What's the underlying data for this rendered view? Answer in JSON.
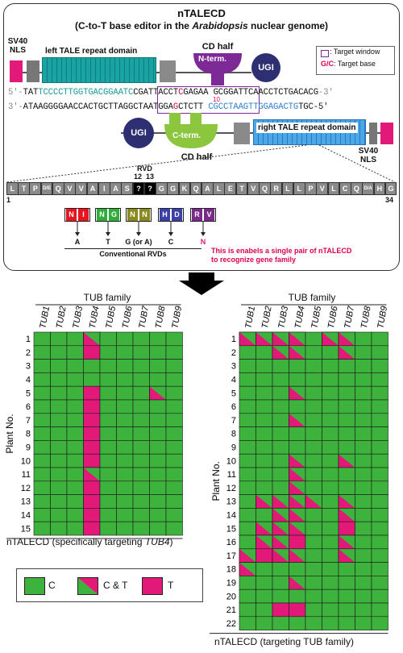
{
  "header": {
    "title": "nTALECD",
    "subtitle_pre": "(C-to-T base editor in the ",
    "subtitle_italic": "Arabidopsis",
    "subtitle_post": " nuclear genome)"
  },
  "construct": {
    "sv40_nls": [
      "SV40",
      "NLS"
    ],
    "left_tale": "left TALE repeat domain",
    "right_tale": "right TALE repeat domain",
    "cd_half": "CD half",
    "n_term": "N-term.",
    "c_term": "C-term.",
    "ugi": "UGI",
    "legend_window": ": Target window",
    "legend_base_prefix": "G/C",
    "legend_base_suffix": ": Target base",
    "target_pos": "10",
    "seq_top": {
      "prime5": "5'-",
      "a": "TAT",
      "b": "TCCCCTTGGTGACGGAATC",
      "c": "CGATTACCT",
      "d": "C",
      "e": "GAGAA",
      "f": "GCGGATTCAACCTCTGACACG",
      "g": "-3'"
    },
    "seq_bot": {
      "prime3": "3'-",
      "a": "ATAAGGGGAACCACTGCTTAG",
      "c": "GCTAATGGA",
      "d": "G",
      "e": "CTCTT",
      "f": "CGCCTAAGTTGGAGACTG",
      "g": "TGC-5'"
    }
  },
  "repeat": {
    "rvd": "RVD",
    "pos12": "12",
    "pos13": "13",
    "residues": [
      "L",
      "T",
      "P",
      "D/E",
      "Q",
      "V",
      "V",
      "A",
      "I",
      "A",
      "S",
      "?",
      "?",
      "G",
      "G",
      "K",
      "Q",
      "A",
      "L",
      "E",
      "T",
      "V",
      "Q",
      "R",
      "L",
      "L",
      "P",
      "V",
      "L",
      "C",
      "Q",
      "D/A",
      "H",
      "G"
    ],
    "idx_start": "1",
    "idx_end": "34",
    "rvds": [
      {
        "label": [
          "N",
          "I"
        ],
        "base": "A",
        "color": "#e8141e"
      },
      {
        "label": [
          "N",
          "G"
        ],
        "base": "T",
        "color": "#2fae3a"
      },
      {
        "label": [
          "N",
          "N"
        ],
        "base": "G (or A)",
        "color": "#8a8a1e"
      },
      {
        "label": [
          "H",
          "D"
        ],
        "base": "C",
        "color": "#3a40a8"
      },
      {
        "label": [
          "R",
          "V"
        ],
        "base": "N",
        "color": "#7a2a8a"
      }
    ],
    "conventional": "Conventional RVDs",
    "note_line1": "This is enabels a single pair of nTALECD",
    "note_line2": "to recognize gene family"
  },
  "grid_left": {
    "title": "TUB family",
    "genes": [
      "TUB1",
      "TUB2",
      "TUB3",
      "TUB4",
      "TUB5",
      "TUB6",
      "TUB7",
      "TUB8",
      "TUB9"
    ],
    "plants": [
      "1",
      "2",
      "3",
      "4",
      "5",
      "6",
      "7",
      "8",
      "9",
      "10",
      "11",
      "12",
      "13",
      "14",
      "15"
    ],
    "ylabel": "Plant No.",
    "caption_pre": "nTALECD (specifically targeting ",
    "caption_it": "TUB4",
    "caption_post": ")",
    "cells": [
      "CCCMCCCCC",
      "CCCTCCCCC",
      "CCCCCCCCC",
      "CCCCCCCCC",
      "CCCTCCCMC",
      "CCCTCCCCC",
      "CCCTCCCCC",
      "CCCTCCCCC",
      "CCCTCCCCC",
      "CCCTCCCCC",
      "CCCMCCCCC",
      "CCCTCCCCC",
      "CCCTCCCCC",
      "CCCTCCCCC",
      "CCCTCCCCC"
    ]
  },
  "grid_right": {
    "title": "TUB family",
    "genes": [
      "TUB1",
      "TUB2",
      "TUB3",
      "TUB4",
      "TUB5",
      "TUB6",
      "TUB7",
      "TUB8",
      "TUB9"
    ],
    "plants": [
      "1",
      "2",
      "3",
      "4",
      "5",
      "6",
      "7",
      "8",
      "9",
      "10",
      "11",
      "12",
      "13",
      "14",
      "15",
      "16",
      "17",
      "18",
      "19",
      "20",
      "21",
      "22"
    ],
    "ylabel": "Plant No.",
    "caption": "nTALECD (targeting TUB family)",
    "cells": [
      "MMMMCMMCC",
      "CCMMCCMCC",
      "CCCCCCCCC",
      "CCCCCCCCC",
      "CCCMCCCCC",
      "CCCCCCCCC",
      "CCCMCCCCC",
      "CCCCCCCCC",
      "CCCCCCCCC",
      "CCCMCCMCC",
      "CCCMCCCCC",
      "CCCMCCCCC",
      "CMMMMCMCC",
      "CCMMCCMCC",
      "CMMMCCTCC",
      "CMMTCCMCC",
      "MTMMCCMCC",
      "MCCCCCCCC",
      "CCCMCCCCC",
      "CCCCCCCCC",
      "CCTTCCCCC",
      "CCCCCCCCC"
    ]
  },
  "legend": {
    "c": "C",
    "ct": "C & T",
    "t": "T"
  },
  "colors": {
    "green": "#3db33d",
    "magenta": "#e3197a",
    "teal_box": "#1aa3a3",
    "blue_box": "#4aa8e8",
    "purple": "#7d2a96",
    "navy": "#2e2e72",
    "cd_green": "#8cc63f"
  }
}
